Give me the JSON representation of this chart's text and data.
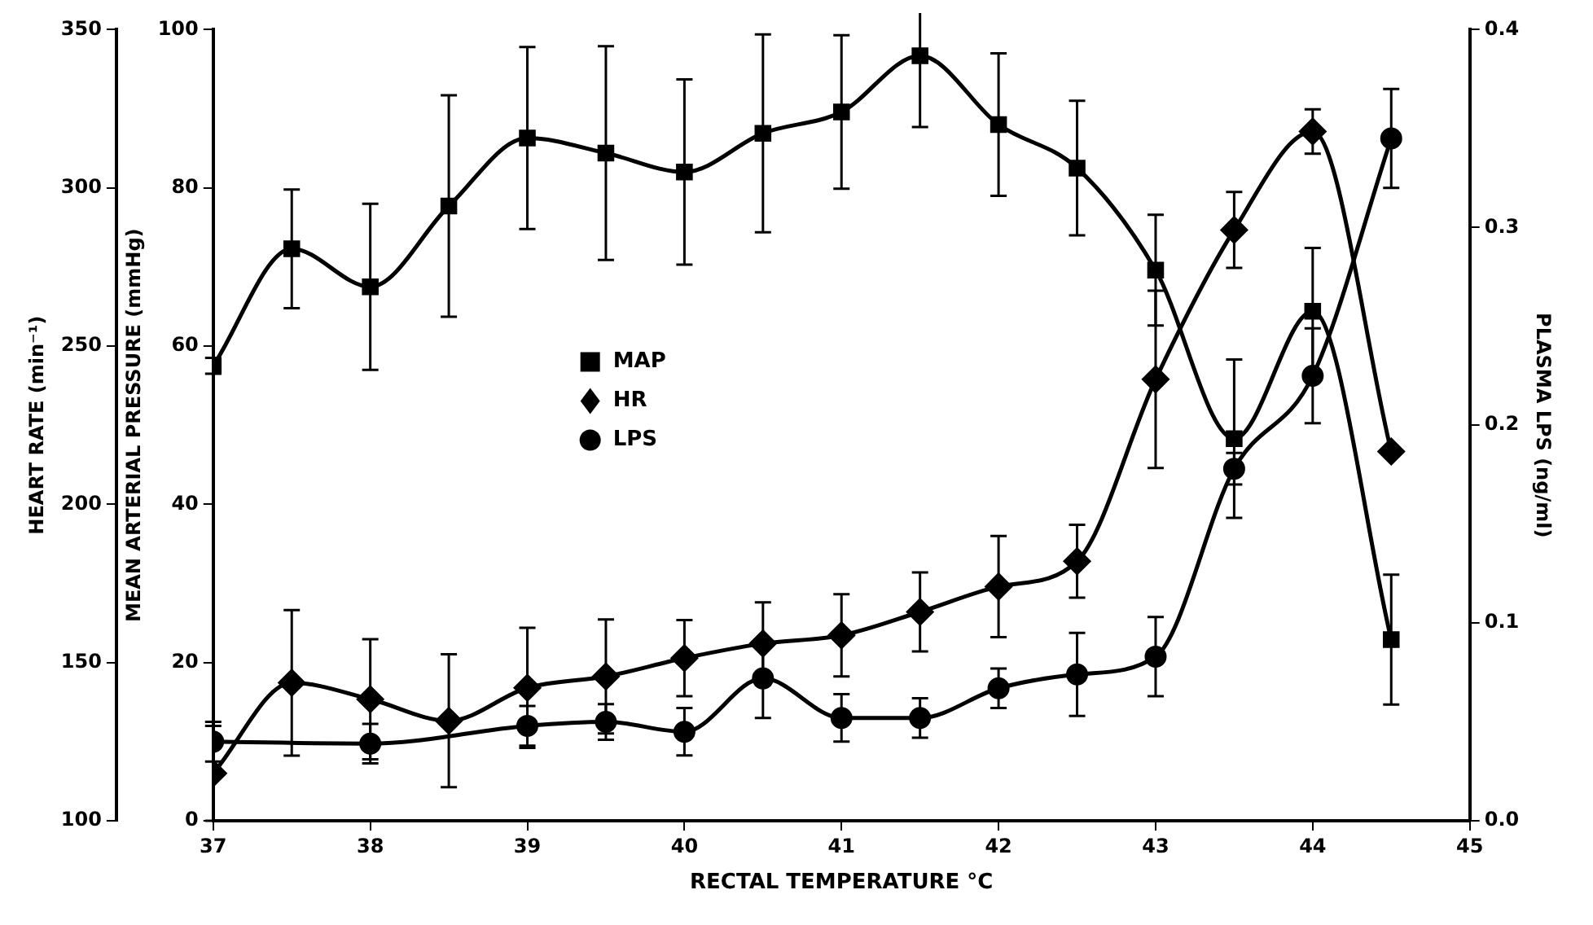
{
  "chart_data": {
    "type": "line",
    "xlabel": "RECTAL TEMPERATURE °C",
    "ylabel": "MEAN ARTERIAL PRESSURE (mmHg)",
    "y2label": "HEART RATE (min⁻¹)",
    "y3label": "PLASMA LPS (ng/ml)",
    "x": [
      37,
      37.5,
      38,
      38.5,
      39,
      39.5,
      40,
      40.5,
      41,
      41.5,
      42,
      42.5,
      43,
      43.5,
      44,
      44.5
    ],
    "xlim": [
      37,
      45
    ],
    "xticks": [
      37,
      38,
      39,
      40,
      41,
      42,
      43,
      44,
      45
    ],
    "ylim": [
      0,
      100
    ],
    "yticks": [
      0,
      20,
      40,
      60,
      80,
      100
    ],
    "y2lim": [
      100,
      350
    ],
    "y2ticks": [
      100,
      150,
      200,
      250,
      300,
      350
    ],
    "y3lim": [
      0,
      0.4
    ],
    "y3ticks": [
      {
        "value": 0,
        "label": "0.0"
      },
      {
        "value": 0.1,
        "label": "0.1"
      },
      {
        "value": 0.2,
        "label": "0.2"
      },
      {
        "value": 0.3,
        "label": "0.3"
      },
      {
        "value": 0.4,
        "label": "0.4"
      }
    ],
    "legend": "left",
    "grid": false,
    "series": [
      {
        "name": "MAP",
        "color": "#000000",
        "marker": "square",
        "values": [
          57.5,
          72.3,
          67.5,
          77.7,
          86.3,
          84.4,
          82,
          86.9,
          89.6,
          96.7,
          88,
          82.5,
          69.6,
          48.3,
          64.4,
          22.9
        ],
        "errors": [
          1,
          7.5,
          10.5,
          14,
          11.5,
          13.5,
          11.7,
          12.5,
          9.7,
          9,
          9,
          8.5,
          7,
          10,
          8,
          8.2
        ]
      },
      {
        "name": "HR",
        "color": "#000000",
        "marker": "diamond",
        "axis": "y2",
        "values": [
          115,
          143.6,
          138.4,
          131.6,
          142,
          145.6,
          151.4,
          156,
          158.6,
          166,
          174,
          182,
          239.5,
          286.7,
          317.8,
          216.7
        ],
        "errors": [
          15,
          23,
          19,
          21,
          19,
          18,
          12,
          13,
          13,
          12.5,
          16,
          11.5,
          28,
          12,
          7,
          null
        ]
      },
      {
        "name": "LPS",
        "color": "#000000",
        "marker": "circle",
        "axis": "y3",
        "values": [
          0.04,
          null,
          0.039,
          null,
          0.048,
          0.05,
          0.045,
          0.072,
          0.052,
          0.052,
          0.067,
          0.074,
          0.083,
          0.178,
          0.225,
          0.345
        ],
        "errors": [
          0.01,
          null,
          0.01,
          null,
          0.01,
          0.009,
          0.012,
          0.02,
          0.012,
          0.01,
          0.01,
          0.021,
          0.02,
          0.008,
          0.024,
          0.025
        ]
      }
    ]
  }
}
